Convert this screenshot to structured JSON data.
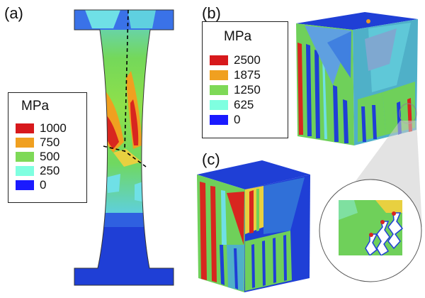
{
  "panels": [
    {
      "id": "a",
      "label": "(a)"
    },
    {
      "id": "b",
      "label": "(b)"
    },
    {
      "id": "c",
      "label": "(c)"
    }
  ],
  "legend_a": {
    "unit": "MPa",
    "entries": [
      {
        "label": "1000",
        "color": "#d7191c"
      },
      {
        "label": "750",
        "color": "#f0a020"
      },
      {
        "label": "500",
        "color": "#7ed957"
      },
      {
        "label": "250",
        "color": "#7fffe0"
      },
      {
        "label": "0",
        "color": "#1a1aff"
      }
    ]
  },
  "legend_b": {
    "unit": "MPa",
    "entries": [
      {
        "label": "2500",
        "color": "#d7191c"
      },
      {
        "label": "1875",
        "color": "#f0a020"
      },
      {
        "label": "1250",
        "color": "#7ed957"
      },
      {
        "label": "625",
        "color": "#7fffe0"
      },
      {
        "label": "0",
        "color": "#1a1aff"
      }
    ]
  },
  "colors": {
    "blue": "#1f3fd6",
    "cyan": "#6fe0e6",
    "green": "#6fd05a",
    "yellow": "#e8d040",
    "orange": "#f09a20",
    "red": "#d8261f"
  }
}
